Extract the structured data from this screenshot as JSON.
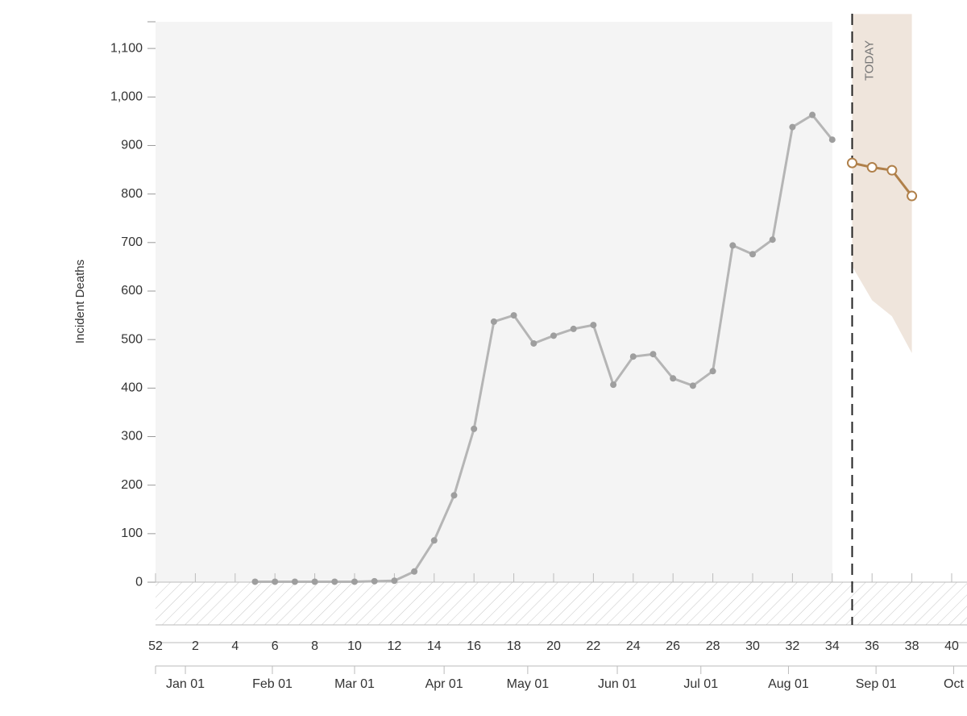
{
  "chart_data": {
    "type": "line",
    "ylabel": "Incident Deaths",
    "xlim": [
      0,
      40.77
    ],
    "ylim": [
      -88,
      1155
    ],
    "xticks": [
      {
        "value": 0,
        "label": "52"
      },
      2,
      4,
      6,
      8,
      10,
      12,
      14,
      16,
      18,
      20,
      22,
      24,
      26,
      28,
      30,
      32,
      34,
      36,
      38,
      40
    ],
    "x2ticks": [
      {
        "value": 1.5,
        "label": "Jan 01"
      },
      {
        "value": 5.87,
        "label": "Feb 01"
      },
      {
        "value": 10.0,
        "label": "Mar 01"
      },
      {
        "value": 14.5,
        "label": "Apr 01"
      },
      {
        "value": 18.7,
        "label": "May 01"
      },
      {
        "value": 23.2,
        "label": "Jun 01"
      },
      {
        "value": 27.4,
        "label": "Jul 01"
      },
      {
        "value": 31.8,
        "label": "Aug 01"
      },
      {
        "value": 36.2,
        "label": "Sep 01"
      },
      {
        "value": 40.1,
        "label": "Oct"
      }
    ],
    "yticks": [
      0,
      100,
      200,
      300,
      400,
      500,
      600,
      700,
      800,
      900,
      {
        "value": 1000,
        "label": "1,000"
      },
      {
        "value": 1100,
        "label": "1,100"
      }
    ],
    "series": [
      {
        "color": "#b5b5b5",
        "x": [
          5,
          6,
          7,
          8,
          9,
          10,
          11,
          12,
          13,
          14,
          15,
          16,
          17,
          18,
          19,
          20,
          21,
          22,
          23,
          24,
          25,
          26,
          27,
          28,
          29,
          30,
          31,
          32,
          33,
          34
        ],
        "values": [
          1,
          1,
          1,
          1,
          1,
          1,
          2,
          3,
          22,
          86,
          179,
          316,
          537,
          550,
          492,
          508,
          522,
          530,
          407,
          465,
          470,
          420,
          405,
          435,
          694,
          676,
          706,
          938,
          963,
          912
        ]
      },
      {
        "color": "#b0804a",
        "x": [
          35,
          36,
          37,
          38
        ],
        "values": [
          864,
          855,
          849,
          796
        ]
      }
    ],
    "band": {
      "color": "#efe5dc",
      "x": [
        35,
        36,
        37,
        38
      ],
      "upper": [
        1171,
        1171,
        1171,
        1171
      ],
      "lower": [
        651,
        581,
        548,
        472
      ]
    },
    "today": {
      "x": 35,
      "label": "TODAY"
    }
  }
}
